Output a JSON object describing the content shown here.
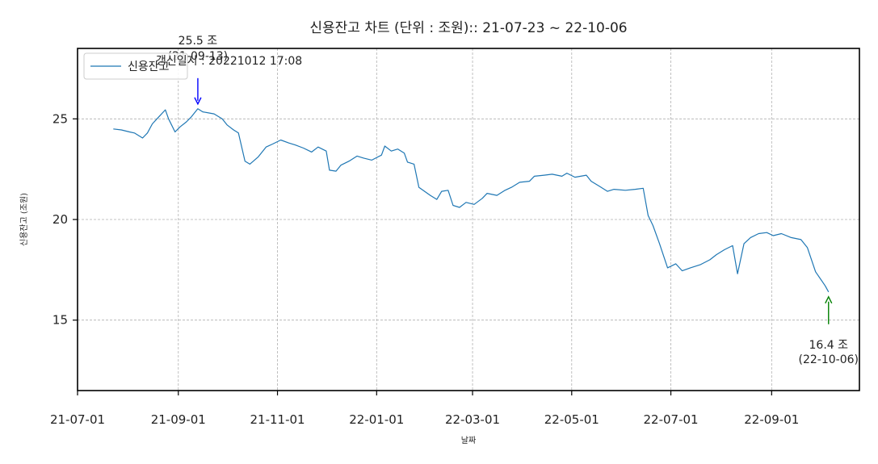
{
  "chart_data": {
    "type": "line",
    "title": "신용잔고 차트 (단위 : 조원):: 21-07-23 ~ 22-10-06",
    "xlabel": "날짜",
    "ylabel": "신용잔고 (조원)",
    "x_range": [
      "2021-07-01",
      "2022-10-25"
    ],
    "ylim": [
      11.5,
      28.5
    ],
    "y_ticks": [
      15,
      20,
      25
    ],
    "y_tick_labels": [
      "15",
      "20",
      "25"
    ],
    "x_ticks": [
      "2021-07-01",
      "2021-09-01",
      "2021-11-01",
      "2022-01-01",
      "2022-03-01",
      "2022-05-01",
      "2022-07-01",
      "2022-09-01"
    ],
    "x_tick_labels": [
      "21-07-01",
      "21-09-01",
      "21-11-01",
      "22-01-01",
      "22-03-01",
      "22-05-01",
      "22-07-01",
      "22-09-01"
    ],
    "grid": true,
    "legend_position": "top-left",
    "series": [
      {
        "name": "신용잔고",
        "color": "#1f77b4",
        "points": [
          [
            "2021-07-23",
            24.5
          ],
          [
            "2021-07-28",
            24.45
          ],
          [
            "2021-08-02",
            24.35
          ],
          [
            "2021-08-05",
            24.3
          ],
          [
            "2021-08-10",
            24.05
          ],
          [
            "2021-08-13",
            24.3
          ],
          [
            "2021-08-16",
            24.75
          ],
          [
            "2021-08-20",
            25.1
          ],
          [
            "2021-08-24",
            25.45
          ],
          [
            "2021-08-26",
            25.0
          ],
          [
            "2021-08-30",
            24.35
          ],
          [
            "2021-09-02",
            24.6
          ],
          [
            "2021-09-06",
            24.85
          ],
          [
            "2021-09-09",
            25.1
          ],
          [
            "2021-09-13",
            25.5
          ],
          [
            "2021-09-16",
            25.35
          ],
          [
            "2021-09-23",
            25.25
          ],
          [
            "2021-09-28",
            25.0
          ],
          [
            "2021-10-01",
            24.7
          ],
          [
            "2021-10-05",
            24.45
          ],
          [
            "2021-10-08",
            24.3
          ],
          [
            "2021-10-12",
            22.9
          ],
          [
            "2021-10-15",
            22.75
          ],
          [
            "2021-10-20",
            23.1
          ],
          [
            "2021-10-25",
            23.6
          ],
          [
            "2021-10-29",
            23.75
          ],
          [
            "2021-11-03",
            23.95
          ],
          [
            "2021-11-08",
            23.8
          ],
          [
            "2021-11-12",
            23.7
          ],
          [
            "2021-11-17",
            23.55
          ],
          [
            "2021-11-22",
            23.35
          ],
          [
            "2021-11-26",
            23.6
          ],
          [
            "2021-12-01",
            23.4
          ],
          [
            "2021-12-03",
            22.45
          ],
          [
            "2021-12-07",
            22.4
          ],
          [
            "2021-12-10",
            22.7
          ],
          [
            "2021-12-15",
            22.9
          ],
          [
            "2021-12-20",
            23.15
          ],
          [
            "2021-12-24",
            23.05
          ],
          [
            "2021-12-29",
            22.95
          ],
          [
            "2022-01-04",
            23.2
          ],
          [
            "2022-01-06",
            23.65
          ],
          [
            "2022-01-10",
            23.4
          ],
          [
            "2022-01-14",
            23.5
          ],
          [
            "2022-01-18",
            23.3
          ],
          [
            "2022-01-20",
            22.85
          ],
          [
            "2022-01-24",
            22.75
          ],
          [
            "2022-01-27",
            21.6
          ],
          [
            "2022-02-03",
            21.2
          ],
          [
            "2022-02-07",
            21.0
          ],
          [
            "2022-02-10",
            21.4
          ],
          [
            "2022-02-14",
            21.45
          ],
          [
            "2022-02-17",
            20.7
          ],
          [
            "2022-02-21",
            20.6
          ],
          [
            "2022-02-25",
            20.85
          ],
          [
            "2022-03-02",
            20.75
          ],
          [
            "2022-03-07",
            21.05
          ],
          [
            "2022-03-10",
            21.3
          ],
          [
            "2022-03-16",
            21.2
          ],
          [
            "2022-03-21",
            21.45
          ],
          [
            "2022-03-25",
            21.6
          ],
          [
            "2022-03-30",
            21.85
          ],
          [
            "2022-04-05",
            21.9
          ],
          [
            "2022-04-08",
            22.15
          ],
          [
            "2022-04-14",
            22.2
          ],
          [
            "2022-04-19",
            22.25
          ],
          [
            "2022-04-25",
            22.15
          ],
          [
            "2022-04-28",
            22.3
          ],
          [
            "2022-05-03",
            22.1
          ],
          [
            "2022-05-10",
            22.2
          ],
          [
            "2022-05-13",
            21.9
          ],
          [
            "2022-05-18",
            21.65
          ],
          [
            "2022-05-23",
            21.4
          ],
          [
            "2022-05-27",
            21.5
          ],
          [
            "2022-06-03",
            21.45
          ],
          [
            "2022-06-09",
            21.5
          ],
          [
            "2022-06-14",
            21.55
          ],
          [
            "2022-06-17",
            20.2
          ],
          [
            "2022-06-20",
            19.7
          ],
          [
            "2022-06-24",
            18.8
          ],
          [
            "2022-06-29",
            17.6
          ],
          [
            "2022-07-04",
            17.8
          ],
          [
            "2022-07-08",
            17.45
          ],
          [
            "2022-07-13",
            17.6
          ],
          [
            "2022-07-19",
            17.75
          ],
          [
            "2022-07-25",
            18.0
          ],
          [
            "2022-07-29",
            18.25
          ],
          [
            "2022-08-03",
            18.5
          ],
          [
            "2022-08-08",
            18.7
          ],
          [
            "2022-08-11",
            17.3
          ],
          [
            "2022-08-15",
            18.8
          ],
          [
            "2022-08-19",
            19.1
          ],
          [
            "2022-08-24",
            19.3
          ],
          [
            "2022-08-29",
            19.35
          ],
          [
            "2022-09-02",
            19.2
          ],
          [
            "2022-09-07",
            19.3
          ],
          [
            "2022-09-13",
            19.1
          ],
          [
            "2022-09-19",
            19.0
          ],
          [
            "2022-09-23",
            18.6
          ],
          [
            "2022-09-28",
            17.4
          ],
          [
            "2022-10-04",
            16.7
          ],
          [
            "2022-10-06",
            16.4
          ]
        ]
      }
    ],
    "annotations": [
      {
        "text": "25.5 조",
        "subtext": "(21-09-13)",
        "x": "2021-09-13",
        "y": 25.5,
        "type": "max",
        "color": "#0000ff"
      },
      {
        "text": "16.4 조",
        "subtext": "(22-10-06)",
        "x": "2022-10-06",
        "y": 16.4,
        "type": "last",
        "color": "#008000"
      }
    ],
    "update_text": "갱신일시 : 20221012 17:08",
    "update_text_color": "#1a1aff"
  }
}
